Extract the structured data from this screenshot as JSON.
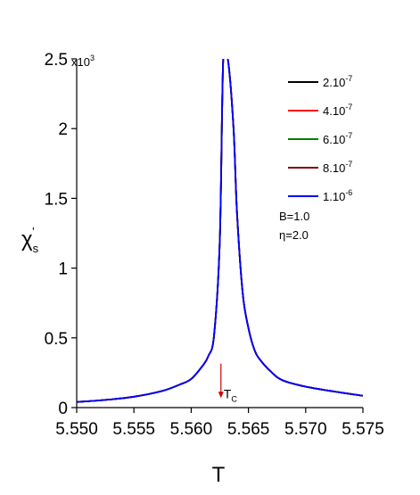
{
  "chart_data": {
    "type": "line",
    "xlabel": "T",
    "ylabel": {
      "base": "χ",
      "sub": "s",
      "sup": "'"
    },
    "xlim": [
      5.55,
      5.575
    ],
    "ylim": [
      0,
      2500
    ],
    "y_multiplier_label": {
      "base": "x10",
      "exp": "3"
    },
    "x_ticks": [
      "5.550",
      "5.555",
      "5.560",
      "5.565",
      "5.570",
      "5.575"
    ],
    "x_tick_values": [
      5.55,
      5.555,
      5.56,
      5.565,
      5.57,
      5.575
    ],
    "y_ticks": [
      "0",
      "0.5",
      "1",
      "1.5",
      "2",
      "2.5"
    ],
    "y_tick_values": [
      0,
      500,
      1000,
      1500,
      2000,
      2500
    ],
    "grid": false,
    "legend_position": "top-right",
    "series": [
      {
        "name": "2.10",
        "exp": "-7",
        "color": "#000000"
      },
      {
        "name": "4.10",
        "exp": "-7",
        "color": "#ff0000"
      },
      {
        "name": "6.10",
        "exp": "-7",
        "color": "#008000"
      },
      {
        "name": "8.10",
        "exp": "-7",
        "color": "#800000"
      },
      {
        "name": "1.10",
        "exp": "-6",
        "color": "#0000ff"
      }
    ],
    "curve": {
      "x": [
        5.55,
        5.5525,
        5.555,
        5.5575,
        5.559,
        5.56,
        5.561,
        5.5615,
        5.562,
        5.5625,
        5.5628,
        5.5632,
        5.5637,
        5.564,
        5.5645,
        5.565,
        5.5655,
        5.566,
        5.567,
        5.568,
        5.57,
        5.5725,
        5.575
      ],
      "y": [
        40,
        55,
        78,
        120,
        165,
        205,
        300,
        370,
        520,
        1200,
        2500,
        2500,
        2000,
        1400,
        820,
        570,
        420,
        345,
        255,
        195,
        150,
        115,
        85
      ]
    },
    "params": [
      "B=1.0",
      "η=2.0"
    ],
    "annotation": {
      "text": "T",
      "sub": "C",
      "x": 5.5626,
      "arrow_from_y": 315,
      "arrow_to_y": 75
    }
  }
}
